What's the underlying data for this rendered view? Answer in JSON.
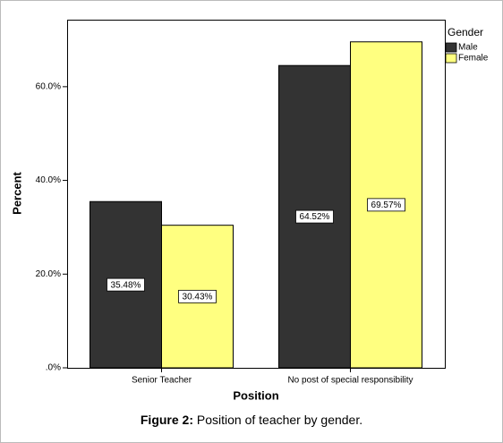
{
  "chart_data": {
    "type": "bar",
    "x_label": "Position",
    "y_label": "Percent",
    "categories": [
      "Senior Teacher",
      "No post of special responsibility"
    ],
    "series": [
      {
        "name": "Male",
        "color": "#333333",
        "values": [
          35.48,
          64.52
        ],
        "value_labels": [
          "35.48%",
          "64.52%"
        ]
      },
      {
        "name": "Female",
        "color": "#ffff80",
        "values": [
          30.43,
          69.57
        ],
        "value_labels": [
          "30.43%",
          "69.57%"
        ]
      }
    ],
    "legend_title": "Gender",
    "legend_position": "right",
    "ylim": [
      0,
      74.3
    ],
    "yticks": [
      {
        "value": 0,
        "label": ".0%"
      },
      {
        "value": 20,
        "label": "20.0%"
      },
      {
        "value": 40,
        "label": "40.0%"
      },
      {
        "value": 60,
        "label": "60.0%"
      }
    ],
    "grid": false
  },
  "caption_label": "Figure 2:",
  "caption": "Position of teacher by gender."
}
